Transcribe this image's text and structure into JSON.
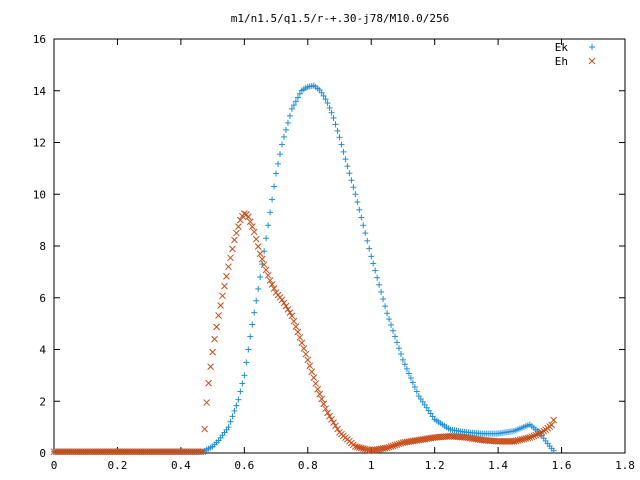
{
  "chart_data": {
    "type": "scatter",
    "title": "m1/n1.5/q1.5/r-+.30-j78/M10.0/256",
    "xlabel": "",
    "ylabel": "",
    "xlim": [
      0,
      1.8
    ],
    "ylim": [
      0,
      16
    ],
    "x_ticks": [
      "0",
      "0.2",
      "0.4",
      "0.6",
      "0.8",
      "1",
      "1.2",
      "1.4",
      "1.6",
      "1.8"
    ],
    "y_ticks": [
      "0",
      "2",
      "4",
      "6",
      "8",
      "10",
      "12",
      "14",
      "16"
    ],
    "grid": false,
    "legend_position": "top-right",
    "series": [
      {
        "name": "Ek",
        "marker": "plus",
        "color": "#1f8fd6",
        "x": [
          0.0,
          0.1,
          0.2,
          0.3,
          0.4,
          0.47,
          0.5,
          0.52,
          0.55,
          0.58,
          0.6,
          0.62,
          0.65,
          0.68,
          0.7,
          0.72,
          0.75,
          0.78,
          0.8,
          0.82,
          0.84,
          0.86,
          0.88,
          0.9,
          0.92,
          0.95,
          1.0,
          1.05,
          1.1,
          1.15,
          1.2,
          1.25,
          1.3,
          1.35,
          1.4,
          1.45,
          1.5,
          1.53,
          1.56,
          1.58
        ],
        "y": [
          0.05,
          0.05,
          0.05,
          0.05,
          0.05,
          0.05,
          0.25,
          0.5,
          1.0,
          2.0,
          3.0,
          4.6,
          6.8,
          9.2,
          10.8,
          12.0,
          13.3,
          14.0,
          14.15,
          14.2,
          14.0,
          13.6,
          13.0,
          12.2,
          11.3,
          10.0,
          7.6,
          5.4,
          3.6,
          2.2,
          1.3,
          0.9,
          0.8,
          0.75,
          0.75,
          0.85,
          1.1,
          0.8,
          0.3,
          0.02
        ]
      },
      {
        "name": "Eh",
        "marker": "cross",
        "color": "#c84b16",
        "x": [
          0.0,
          0.1,
          0.2,
          0.3,
          0.4,
          0.47,
          0.48,
          0.49,
          0.5,
          0.51,
          0.52,
          0.53,
          0.55,
          0.57,
          0.59,
          0.6,
          0.61,
          0.63,
          0.65,
          0.68,
          0.7,
          0.72,
          0.75,
          0.78,
          0.8,
          0.83,
          0.86,
          0.9,
          0.95,
          1.0,
          1.05,
          1.1,
          1.15,
          1.2,
          1.25,
          1.3,
          1.35,
          1.4,
          1.45,
          1.5,
          1.53,
          1.55,
          1.57,
          1.58
        ],
        "y": [
          0.05,
          0.05,
          0.05,
          0.05,
          0.05,
          0.05,
          1.8,
          3.0,
          3.9,
          4.7,
          5.4,
          6.0,
          7.2,
          8.3,
          9.1,
          9.25,
          9.2,
          8.6,
          7.7,
          6.7,
          6.2,
          5.9,
          5.3,
          4.3,
          3.6,
          2.5,
          1.6,
          0.8,
          0.25,
          0.1,
          0.2,
          0.4,
          0.5,
          0.6,
          0.65,
          0.6,
          0.5,
          0.45,
          0.45,
          0.6,
          0.75,
          0.9,
          1.1,
          1.45
        ]
      }
    ]
  }
}
